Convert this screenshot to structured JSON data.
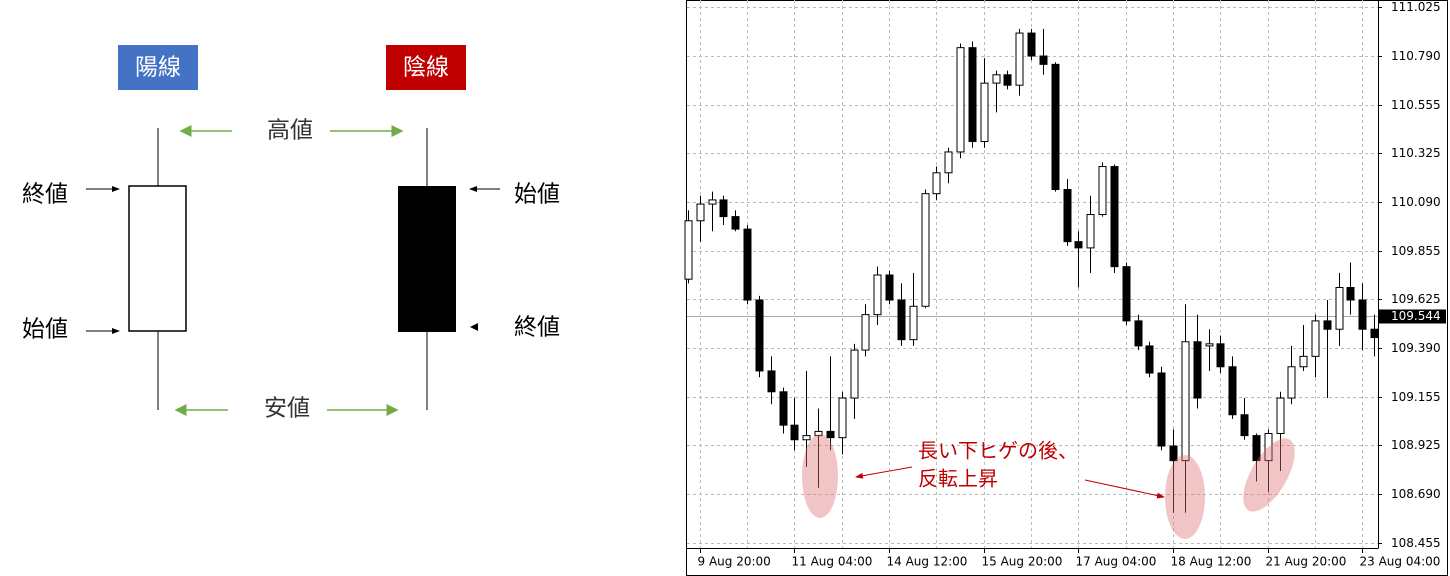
{
  "diagram": {
    "bullish_label": "陽線",
    "bearish_label": "陰線",
    "high": "高値",
    "low": "安値",
    "bullish_close": "終値",
    "bullish_open": "始値",
    "bearish_open": "始値",
    "bearish_close": "終値"
  },
  "chart_data": {
    "type": "candlestick",
    "categories": [
      null,
      "9 Aug 20:00",
      null,
      null,
      null,
      null,
      null,
      null,
      null,
      "11 Aug 04:00",
      null,
      null,
      null,
      null,
      null,
      null,
      null,
      "14 Aug 12:00",
      null,
      null,
      null,
      null,
      null,
      null,
      null,
      "15 Aug 20:00",
      null,
      null,
      null,
      null,
      null,
      null,
      null,
      "17 Aug 04:00",
      null,
      null,
      null,
      null,
      null,
      null,
      null,
      "18 Aug 12:00",
      null,
      null,
      null,
      null,
      null,
      null,
      null,
      "21 Aug 20:00",
      null,
      null,
      null,
      null,
      null,
      null,
      null,
      "23 Aug 04:00",
      null
    ],
    "open": [
      109.72,
      110.0,
      110.08,
      110.1,
      110.02,
      109.96,
      109.62,
      109.28,
      109.18,
      109.02,
      108.95,
      108.97,
      108.99,
      108.96,
      109.15,
      109.38,
      109.55,
      109.74,
      109.62,
      109.43,
      109.59,
      110.13,
      110.23,
      110.33,
      110.83,
      110.38,
      110.66,
      110.7,
      110.65,
      110.9,
      110.79,
      110.75,
      110.15,
      109.9,
      109.87,
      110.03,
      110.26,
      109.78,
      109.52,
      109.4,
      109.27,
      108.92,
      108.85,
      109.42,
      109.4,
      109.41,
      109.3,
      109.07,
      108.97,
      108.85,
      108.98,
      109.15,
      109.3,
      109.35,
      109.52,
      109.48,
      109.68,
      109.62,
      109.48
    ],
    "high": [
      110.05,
      110.12,
      110.14,
      110.12,
      110.05,
      109.98,
      109.64,
      109.35,
      109.2,
      109.15,
      109.28,
      109.1,
      109.35,
      109.18,
      109.41,
      109.6,
      109.78,
      109.76,
      109.7,
      109.75,
      110.15,
      110.26,
      110.35,
      110.85,
      110.86,
      110.78,
      110.72,
      110.72,
      110.92,
      110.92,
      110.92,
      110.76,
      110.2,
      109.95,
      110.12,
      110.28,
      110.27,
      109.8,
      109.55,
      109.42,
      109.3,
      109.0,
      109.6,
      109.55,
      109.48,
      109.45,
      109.35,
      109.15,
      108.98,
      109.0,
      109.18,
      109.4,
      109.5,
      109.55,
      109.62,
      109.75,
      109.8,
      109.7,
      109.55
    ],
    "low": [
      109.7,
      109.9,
      109.95,
      109.98,
      109.95,
      109.6,
      109.25,
      109.12,
      108.98,
      108.9,
      108.82,
      108.72,
      108.9,
      108.88,
      109.05,
      109.35,
      109.5,
      109.6,
      109.4,
      109.4,
      109.58,
      110.1,
      110.18,
      110.3,
      110.35,
      110.35,
      110.52,
      110.63,
      110.6,
      110.77,
      110.7,
      110.14,
      109.88,
      109.68,
      109.75,
      110.02,
      109.75,
      109.5,
      109.38,
      109.25,
      108.9,
      108.6,
      108.6,
      109.1,
      109.28,
      109.27,
      109.05,
      108.95,
      108.75,
      108.7,
      108.8,
      109.12,
      109.28,
      109.25,
      109.15,
      109.4,
      109.55,
      109.38,
      109.35
    ],
    "close": [
      110.0,
      110.08,
      110.1,
      110.02,
      109.96,
      109.62,
      109.28,
      109.18,
      109.02,
      108.95,
      108.97,
      108.99,
      108.96,
      109.15,
      109.38,
      109.55,
      109.74,
      109.62,
      109.43,
      109.59,
      110.13,
      110.23,
      110.33,
      110.83,
      110.38,
      110.66,
      110.7,
      110.65,
      110.9,
      110.79,
      110.75,
      110.15,
      109.9,
      109.87,
      110.03,
      110.26,
      109.78,
      109.52,
      109.4,
      109.27,
      108.92,
      108.85,
      109.42,
      109.15,
      109.41,
      109.3,
      109.07,
      108.97,
      108.85,
      108.98,
      109.15,
      109.3,
      109.35,
      109.52,
      109.48,
      109.68,
      109.62,
      109.48,
      109.44
    ],
    "up_color": "#ffffff",
    "down_color": "#000000",
    "ylim": [
      108.455,
      111.025
    ],
    "yticks": [
      108.455,
      {
        "value": 108.69,
        "label": "108.690"
      },
      108.925,
      109.155,
      {
        "value": 109.39,
        "label": "109.390"
      },
      109.625,
      109.855,
      {
        "value": 110.09,
        "label": "110.090"
      },
      110.325,
      110.555,
      {
        "value": 110.79,
        "label": "110.790"
      },
      111.025
    ],
    "price_line": 109.544,
    "grid": true,
    "annotations": [
      "長い下ヒゲの後、",
      "反転上昇"
    ]
  }
}
